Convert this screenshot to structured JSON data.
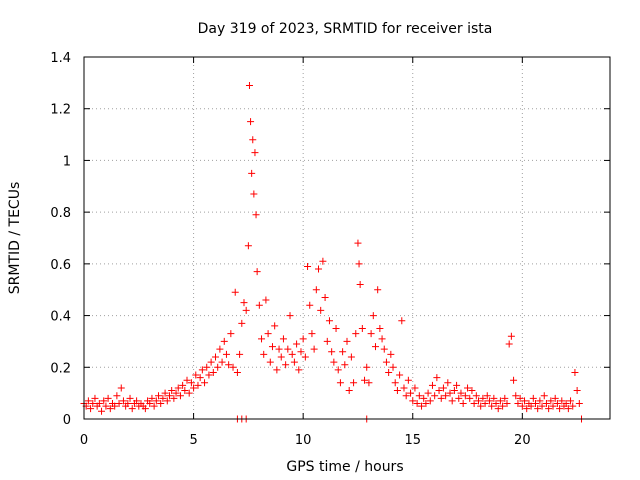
{
  "chart_data": {
    "type": "scatter",
    "title": "Day 319 of 2023, SRMTID for receiver ista",
    "xlabel": "GPS time / hours",
    "ylabel": "SRMTID / TECUs",
    "xlim": [
      0,
      24
    ],
    "ylim": [
      0,
      1.4
    ],
    "xticks": [
      0,
      5,
      10,
      15,
      20
    ],
    "yticks": [
      0,
      0.2,
      0.4,
      0.6,
      0.8,
      1,
      1.2,
      1.4
    ],
    "xtick_labels": [
      "0",
      "5",
      "10",
      "15",
      "20"
    ],
    "ytick_labels": [
      "0",
      "0.2",
      "0.4",
      "0.6",
      "0.8",
      "1",
      "1.2",
      "1.4"
    ],
    "grid": true,
    "marker": "+",
    "color": "#ff0000",
    "series": [
      {
        "name": "SRMTID",
        "points": [
          [
            0.0,
            0.06
          ],
          [
            0.1,
            0.05
          ],
          [
            0.2,
            0.07
          ],
          [
            0.3,
            0.04
          ],
          [
            0.4,
            0.06
          ],
          [
            0.5,
            0.08
          ],
          [
            0.6,
            0.05
          ],
          [
            0.7,
            0.06
          ],
          [
            0.8,
            0.03
          ],
          [
            0.9,
            0.07
          ],
          [
            1.0,
            0.05
          ],
          [
            1.1,
            0.08
          ],
          [
            1.2,
            0.04
          ],
          [
            1.3,
            0.06
          ],
          [
            1.4,
            0.05
          ],
          [
            1.5,
            0.09
          ],
          [
            1.6,
            0.06
          ],
          [
            1.7,
            0.12
          ],
          [
            1.8,
            0.07
          ],
          [
            1.9,
            0.05
          ],
          [
            2.0,
            0.06
          ],
          [
            2.1,
            0.08
          ],
          [
            2.2,
            0.04
          ],
          [
            2.3,
            0.06
          ],
          [
            2.4,
            0.07
          ],
          [
            2.5,
            0.05
          ],
          [
            2.6,
            0.06
          ],
          [
            2.7,
            0.05
          ],
          [
            2.8,
            0.04
          ],
          [
            2.9,
            0.07
          ],
          [
            3.0,
            0.06
          ],
          [
            3.1,
            0.08
          ],
          [
            3.2,
            0.05
          ],
          [
            3.3,
            0.07
          ],
          [
            3.4,
            0.09
          ],
          [
            3.5,
            0.06
          ],
          [
            3.6,
            0.08
          ],
          [
            3.7,
            0.1
          ],
          [
            3.8,
            0.07
          ],
          [
            3.9,
            0.09
          ],
          [
            4.0,
            0.11
          ],
          [
            4.1,
            0.08
          ],
          [
            4.2,
            0.1
          ],
          [
            4.3,
            0.12
          ],
          [
            4.4,
            0.09
          ],
          [
            4.5,
            0.13
          ],
          [
            4.6,
            0.11
          ],
          [
            4.7,
            0.15
          ],
          [
            4.8,
            0.1
          ],
          [
            4.9,
            0.14
          ],
          [
            5.0,
            0.12
          ],
          [
            5.1,
            0.17
          ],
          [
            5.2,
            0.13
          ],
          [
            5.3,
            0.16
          ],
          [
            5.4,
            0.19
          ],
          [
            5.5,
            0.14
          ],
          [
            5.6,
            0.2
          ],
          [
            5.7,
            0.17
          ],
          [
            5.8,
            0.22
          ],
          [
            5.9,
            0.18
          ],
          [
            6.0,
            0.24
          ],
          [
            6.1,
            0.2
          ],
          [
            6.2,
            0.27
          ],
          [
            6.3,
            0.22
          ],
          [
            6.4,
            0.3
          ],
          [
            6.5,
            0.25
          ],
          [
            6.6,
            0.21
          ],
          [
            6.7,
            0.33
          ],
          [
            6.8,
            0.2
          ],
          [
            6.9,
            0.49
          ],
          [
            7.0,
            0.18
          ],
          [
            7.1,
            0.25
          ],
          [
            7.2,
            0.37
          ],
          [
            7.3,
            0.45
          ],
          [
            7.4,
            0.42
          ],
          [
            7.5,
            0.67
          ],
          [
            7.55,
            1.29
          ],
          [
            7.6,
            1.15
          ],
          [
            7.65,
            0.95
          ],
          [
            7.7,
            1.08
          ],
          [
            7.75,
            0.87
          ],
          [
            7.8,
            1.03
          ],
          [
            7.85,
            0.79
          ],
          [
            7.9,
            0.57
          ],
          [
            8.0,
            0.44
          ],
          [
            8.1,
            0.31
          ],
          [
            8.2,
            0.25
          ],
          [
            8.3,
            0.46
          ],
          [
            8.4,
            0.33
          ],
          [
            8.5,
            0.22
          ],
          [
            8.6,
            0.28
          ],
          [
            8.7,
            0.36
          ],
          [
            8.8,
            0.19
          ],
          [
            8.9,
            0.27
          ],
          [
            9.0,
            0.24
          ],
          [
            9.1,
            0.31
          ],
          [
            9.2,
            0.21
          ],
          [
            9.3,
            0.27
          ],
          [
            9.4,
            0.4
          ],
          [
            9.5,
            0.25
          ],
          [
            9.6,
            0.22
          ],
          [
            9.7,
            0.29
          ],
          [
            9.8,
            0.19
          ],
          [
            9.9,
            0.26
          ],
          [
            10.0,
            0.31
          ],
          [
            10.1,
            0.24
          ],
          [
            10.2,
            0.59
          ],
          [
            10.3,
            0.44
          ],
          [
            10.4,
            0.33
          ],
          [
            10.5,
            0.27
          ],
          [
            10.6,
            0.5
          ],
          [
            10.7,
            0.58
          ],
          [
            10.8,
            0.42
          ],
          [
            10.9,
            0.61
          ],
          [
            11.0,
            0.47
          ],
          [
            11.1,
            0.3
          ],
          [
            11.2,
            0.38
          ],
          [
            11.3,
            0.26
          ],
          [
            11.4,
            0.22
          ],
          [
            11.5,
            0.35
          ],
          [
            11.6,
            0.19
          ],
          [
            11.7,
            0.14
          ],
          [
            11.8,
            0.26
          ],
          [
            11.9,
            0.21
          ],
          [
            12.0,
            0.3
          ],
          [
            12.1,
            0.11
          ],
          [
            12.2,
            0.24
          ],
          [
            12.3,
            0.14
          ],
          [
            12.4,
            0.33
          ],
          [
            12.5,
            0.68
          ],
          [
            12.55,
            0.6
          ],
          [
            12.6,
            0.52
          ],
          [
            12.7,
            0.35
          ],
          [
            12.8,
            0.15
          ],
          [
            12.9,
            0.2
          ],
          [
            13.0,
            0.14
          ],
          [
            13.1,
            0.33
          ],
          [
            13.2,
            0.4
          ],
          [
            13.3,
            0.28
          ],
          [
            13.4,
            0.5
          ],
          [
            13.5,
            0.35
          ],
          [
            13.6,
            0.31
          ],
          [
            13.7,
            0.27
          ],
          [
            13.8,
            0.22
          ],
          [
            13.9,
            0.18
          ],
          [
            14.0,
            0.25
          ],
          [
            14.1,
            0.2
          ],
          [
            14.2,
            0.14
          ],
          [
            14.3,
            0.11
          ],
          [
            14.4,
            0.17
          ],
          [
            14.5,
            0.38
          ],
          [
            14.6,
            0.12
          ],
          [
            14.7,
            0.09
          ],
          [
            14.8,
            0.15
          ],
          [
            14.9,
            0.1
          ],
          [
            15.0,
            0.07
          ],
          [
            15.1,
            0.12
          ],
          [
            15.2,
            0.06
          ],
          [
            15.3,
            0.09
          ],
          [
            15.4,
            0.05
          ],
          [
            15.5,
            0.08
          ],
          [
            15.6,
            0.06
          ],
          [
            15.7,
            0.1
          ],
          [
            15.8,
            0.07
          ],
          [
            15.9,
            0.13
          ],
          [
            16.0,
            0.09
          ],
          [
            16.1,
            0.16
          ],
          [
            16.2,
            0.11
          ],
          [
            16.3,
            0.08
          ],
          [
            16.4,
            0.12
          ],
          [
            16.5,
            0.09
          ],
          [
            16.6,
            0.14
          ],
          [
            16.7,
            0.1
          ],
          [
            16.8,
            0.07
          ],
          [
            16.9,
            0.11
          ],
          [
            17.0,
            0.13
          ],
          [
            17.1,
            0.08
          ],
          [
            17.2,
            0.1
          ],
          [
            17.3,
            0.06
          ],
          [
            17.4,
            0.09
          ],
          [
            17.5,
            0.12
          ],
          [
            17.6,
            0.08
          ],
          [
            17.7,
            0.11
          ],
          [
            17.8,
            0.06
          ],
          [
            17.9,
            0.09
          ],
          [
            18.0,
            0.07
          ],
          [
            18.1,
            0.05
          ],
          [
            18.2,
            0.08
          ],
          [
            18.3,
            0.06
          ],
          [
            18.4,
            0.09
          ],
          [
            18.5,
            0.07
          ],
          [
            18.6,
            0.05
          ],
          [
            18.7,
            0.08
          ],
          [
            18.8,
            0.06
          ],
          [
            18.9,
            0.04
          ],
          [
            19.0,
            0.07
          ],
          [
            19.1,
            0.05
          ],
          [
            19.2,
            0.08
          ],
          [
            19.3,
            0.06
          ],
          [
            19.4,
            0.29
          ],
          [
            19.5,
            0.32
          ],
          [
            19.6,
            0.15
          ],
          [
            19.7,
            0.09
          ],
          [
            19.8,
            0.06
          ],
          [
            19.9,
            0.08
          ],
          [
            20.0,
            0.05
          ],
          [
            20.1,
            0.07
          ],
          [
            20.2,
            0.04
          ],
          [
            20.3,
            0.06
          ],
          [
            20.4,
            0.05
          ],
          [
            20.5,
            0.08
          ],
          [
            20.6,
            0.06
          ],
          [
            20.7,
            0.04
          ],
          [
            20.8,
            0.07
          ],
          [
            20.9,
            0.05
          ],
          [
            21.0,
            0.09
          ],
          [
            21.1,
            0.06
          ],
          [
            21.2,
            0.04
          ],
          [
            21.3,
            0.07
          ],
          [
            21.4,
            0.05
          ],
          [
            21.5,
            0.08
          ],
          [
            21.6,
            0.06
          ],
          [
            21.7,
            0.04
          ],
          [
            21.8,
            0.07
          ],
          [
            21.9,
            0.05
          ],
          [
            22.0,
            0.06
          ],
          [
            22.1,
            0.04
          ],
          [
            22.2,
            0.07
          ],
          [
            22.3,
            0.05
          ],
          [
            22.4,
            0.18
          ],
          [
            22.5,
            0.11
          ],
          [
            22.6,
            0.06
          ],
          [
            7.0,
            0.0
          ],
          [
            7.2,
            0.0
          ],
          [
            7.4,
            0.0
          ],
          [
            12.9,
            0.0
          ],
          [
            22.7,
            0.0
          ]
        ]
      }
    ]
  }
}
